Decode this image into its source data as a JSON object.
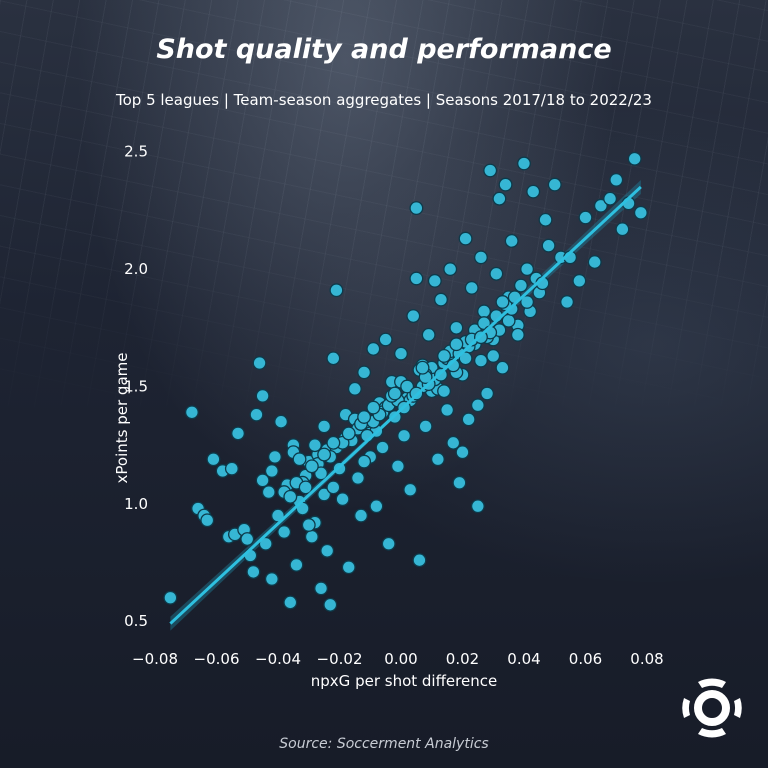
{
  "header": {
    "title": "Shot quality and performance",
    "subtitle": "Top 5 leagues | Team-season aggregates | Seasons 2017/18 to 2022/23"
  },
  "footer": {
    "source": "Source: Soccerment Analytics"
  },
  "colors": {
    "point": "#36b6d4",
    "point_stroke": "#0d3a4a",
    "line": "#2ec0e0",
    "band": "#1f7f99"
  },
  "logo": {
    "icon": "soccerment-logo-icon"
  },
  "chart_data": {
    "type": "scatter",
    "xlabel": "npxG per shot difference",
    "ylabel": "xPoints per game",
    "xlim": [
      -0.08,
      0.08
    ],
    "ylim": [
      0.42,
      2.55
    ],
    "x_ticks": [
      -0.08,
      -0.06,
      -0.04,
      -0.02,
      0.0,
      0.02,
      0.04,
      0.06,
      0.08
    ],
    "x_tick_labels": [
      "−0.08",
      "−0.06",
      "−0.04",
      "−0.02",
      "0.00",
      "0.02",
      "0.04",
      "0.06",
      "0.08"
    ],
    "y_ticks": [
      0.5,
      1.0,
      1.5,
      2.0,
      2.5
    ],
    "y_tick_labels": [
      "0.5",
      "1.0",
      "1.5",
      "2.0",
      "2.5"
    ],
    "regression_line": {
      "x": [
        -0.075,
        0.078
      ],
      "y": [
        0.49,
        2.35
      ]
    },
    "points": {
      "x": [
        -0.075,
        -0.068,
        -0.066,
        -0.064,
        -0.063,
        -0.061,
        -0.058,
        -0.056,
        -0.055,
        -0.054,
        -0.053,
        -0.051,
        -0.05,
        -0.049,
        -0.048,
        -0.047,
        -0.046,
        -0.045,
        -0.045,
        -0.044,
        -0.043,
        -0.042,
        -0.041,
        -0.04,
        -0.039,
        -0.038,
        -0.037,
        -0.036,
        -0.035,
        -0.034,
        -0.033,
        -0.032,
        -0.031,
        -0.03,
        -0.029,
        -0.028,
        -0.027,
        -0.026,
        -0.025,
        -0.024,
        -0.023,
        -0.022,
        -0.021,
        -0.02,
        -0.019,
        -0.018,
        -0.017,
        -0.016,
        -0.015,
        -0.014,
        -0.013,
        -0.012,
        -0.011,
        -0.01,
        -0.009,
        -0.008,
        -0.007,
        -0.006,
        -0.005,
        -0.004,
        -0.003,
        -0.002,
        -0.001,
        0.0,
        0.001,
        0.002,
        0.003,
        0.004,
        0.005,
        0.006,
        0.007,
        0.008,
        0.009,
        0.01,
        0.011,
        0.012,
        0.013,
        0.014,
        0.015,
        0.016,
        0.017,
        0.018,
        0.019,
        0.02,
        0.021,
        0.022,
        0.023,
        0.024,
        0.025,
        0.026,
        0.027,
        0.028,
        0.029,
        0.03,
        0.031,
        0.032,
        0.033,
        0.034,
        0.035,
        0.036,
        0.038,
        0.039,
        0.04,
        0.041,
        0.042,
        0.043,
        0.045,
        0.047,
        0.048,
        0.05,
        0.052,
        0.054,
        0.055,
        0.058,
        0.06,
        0.063,
        0.065,
        0.068,
        0.07,
        0.072,
        0.074,
        0.076,
        0.078,
        0.005,
        0.007,
        0.02,
        0.025,
        0.03,
        0.035,
        -0.02,
        -0.022,
        -0.025,
        -0.028,
        -0.03,
        -0.01,
        -0.005,
        0.0,
        0.01,
        0.015,
        -0.015,
        -0.012,
        0.012,
        0.018,
        0.022,
        -0.035,
        -0.038,
        -0.042,
        -0.032,
        -0.018,
        -0.008,
        0.003,
        0.008,
        0.014,
        0.026,
        0.032,
        0.036,
        0.044,
        -0.027,
        -0.024,
        -0.016,
        -0.006,
        0.004,
        0.016,
        0.028,
        -0.033,
        -0.021,
        -0.009,
        0.002,
        0.011,
        0.021,
        0.031,
        -0.026,
        -0.014,
        -0.004,
        0.006,
        0.019,
        0.024,
        0.034,
        -0.036,
        -0.029,
        -0.011,
        -0.001,
        0.009,
        0.017,
        0.027,
        0.037,
        -0.034,
        -0.023,
        -0.013,
        -0.003,
        0.013,
        0.023,
        0.033,
        -0.019,
        -0.007,
        0.001,
        0.014,
        0.029,
        -0.031,
        -0.017,
        -0.002,
        0.008,
        0.018,
        0.038,
        -0.025,
        -0.012,
        0.005,
        0.021,
        0.041,
        -0.022,
        -0.009,
        0.007,
        0.026,
        0.046
      ],
      "y": [
        0.6,
        1.39,
        0.98,
        0.95,
        0.93,
        1.19,
        1.14,
        0.86,
        1.15,
        0.87,
        1.3,
        0.89,
        0.85,
        0.78,
        0.71,
        1.38,
        1.6,
        1.1,
        1.46,
        0.83,
        1.05,
        0.68,
        1.2,
        0.95,
        1.35,
        0.88,
        1.08,
        0.58,
        1.25,
        0.74,
        1.01,
        0.98,
        1.12,
        1.18,
        0.86,
        0.92,
        1.21,
        0.64,
        1.04,
        0.8,
        0.57,
        1.62,
        1.91,
        1.15,
        1.02,
        1.38,
        0.73,
        1.28,
        1.49,
        1.11,
        0.95,
        1.56,
        1.34,
        1.2,
        1.66,
        0.99,
        1.43,
        1.24,
        1.7,
        0.83,
        1.52,
        1.37,
        1.16,
        1.64,
        1.29,
        1.45,
        1.06,
        1.8,
        2.26,
        0.76,
        1.59,
        1.33,
        1.72,
        1.48,
        1.95,
        1.19,
        1.87,
        1.6,
        1.4,
        2.0,
        1.26,
        1.75,
        1.09,
        1.55,
        2.13,
        1.36,
        1.92,
        1.68,
        0.99,
        2.05,
        1.82,
        1.47,
        2.42,
        1.7,
        1.98,
        2.3,
        1.58,
        2.36,
        1.88,
        2.12,
        1.76,
        1.93,
        2.45,
        2.0,
        1.82,
        2.33,
        1.9,
        2.21,
        2.1,
        2.36,
        2.05,
        1.86,
        2.05,
        1.95,
        2.22,
        2.03,
        2.27,
        2.3,
        2.38,
        2.17,
        2.28,
        2.47,
        2.24,
        1.96,
        1.5,
        1.22,
        1.42,
        1.63,
        1.78,
        1.15,
        1.07,
        1.33,
        1.25,
        0.91,
        1.3,
        1.41,
        1.52,
        1.58,
        1.62,
        1.36,
        1.18,
        1.49,
        1.56,
        1.67,
        1.22,
        1.05,
        1.14,
        1.09,
        1.28,
        1.31,
        1.44,
        1.55,
        1.48,
        1.61,
        1.74,
        1.83,
        1.96,
        1.17,
        1.23,
        1.27,
        1.39,
        1.46,
        1.65,
        1.71,
        1.19,
        1.24,
        1.35,
        1.5,
        1.53,
        1.69,
        1.8,
        1.13,
        1.32,
        1.42,
        1.57,
        1.64,
        1.74,
        1.85,
        1.03,
        1.16,
        1.29,
        1.44,
        1.51,
        1.59,
        1.77,
        1.88,
        1.09,
        1.2,
        1.34,
        1.46,
        1.55,
        1.7,
        1.86,
        1.26,
        1.38,
        1.41,
        1.63,
        1.73,
        1.07,
        1.3,
        1.47,
        1.54,
        1.68,
        1.72,
        1.21,
        1.37,
        1.47,
        1.62,
        1.86,
        1.26,
        1.41,
        1.58,
        1.71,
        1.94
      ]
    }
  }
}
